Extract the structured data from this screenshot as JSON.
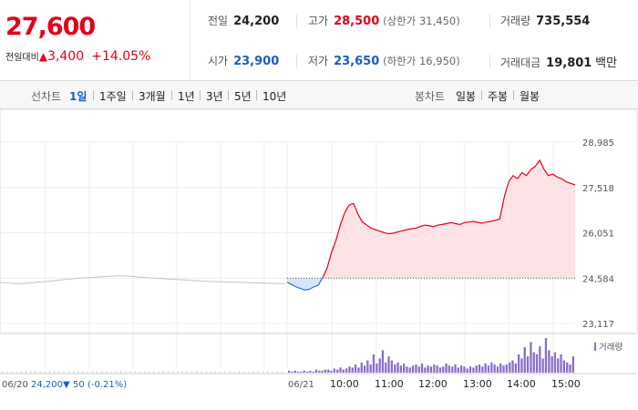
{
  "quote": {
    "price": "27,600",
    "change_label": "전일대비",
    "change_arrow": "▲",
    "change_value": "3,400",
    "change_pct": "+14.05%",
    "colors": {
      "up": "#e3001b",
      "down": "#1a5dc8"
    }
  },
  "stats": {
    "prev_close": {
      "label": "전일",
      "value": "24,200"
    },
    "high": {
      "label": "고가",
      "value": "28,500",
      "sub": "(상한가 31,450)"
    },
    "volume": {
      "label": "거래량",
      "value": "735,554"
    },
    "open": {
      "label": "시가",
      "value": "23,900"
    },
    "low": {
      "label": "저가",
      "value": "23,650",
      "sub": "(하한가 16,950)"
    },
    "amount": {
      "label": "거래대금",
      "value": "19,801",
      "unit": "백만"
    }
  },
  "toolbar": {
    "line_chart_label": "선차트",
    "periods": [
      "1일",
      "1주일",
      "3개월",
      "1년",
      "3년",
      "5년",
      "10년"
    ],
    "active_period": "1일",
    "candle_chart_label": "봉차트",
    "candles": [
      "일봉",
      "주봉",
      "월봉"
    ]
  },
  "footer": {
    "prev_date": "06/20",
    "prev_close": "24,200",
    "prev_arrow": "▼",
    "prev_change": "50",
    "prev_pct": "(-0.21%)"
  },
  "chart_data": {
    "type": "line",
    "y_ticks": [
      "28,985",
      "27,518",
      "26,051",
      "24,584",
      "23,117"
    ],
    "ylim": [
      23117,
      28985
    ],
    "reference_price": 24584,
    "x_labels": [
      "06/21",
      "10:00",
      "11:00",
      "12:00",
      "13:00",
      "14:00",
      "15:00"
    ],
    "volume_legend": "거래량",
    "prev_day_series": [
      24450,
      24420,
      24400,
      24430,
      24460,
      24480,
      24520,
      24550,
      24580,
      24600,
      24620,
      24640,
      24660,
      24650,
      24620,
      24600,
      24580,
      24560,
      24540,
      24520,
      24500,
      24480,
      24470,
      24460,
      24450,
      24440,
      24430,
      24420,
      24410,
      24400
    ],
    "today_series": [
      24450,
      24380,
      24300,
      24250,
      24200,
      24220,
      24300,
      24350,
      24584,
      24900,
      25400,
      25800,
      26300,
      26700,
      26950,
      27000,
      26650,
      26400,
      26300,
      26200,
      26150,
      26100,
      26050,
      26020,
      26040,
      26080,
      26120,
      26150,
      26180,
      26200,
      26250,
      26300,
      26280,
      26250,
      26300,
      26320,
      26350,
      26380,
      26350,
      26320,
      26380,
      26400,
      26420,
      26390,
      26360,
      26400,
      26420,
      26450,
      26500,
      27200,
      27700,
      27900,
      27800,
      28000,
      27900,
      28100,
      28200,
      28400,
      28100,
      27900,
      27950,
      27850,
      27800,
      27700,
      27650,
      27600
    ],
    "volume_bars": [
      2,
      1,
      2,
      1,
      1,
      2,
      1,
      2,
      1,
      3,
      2,
      2,
      3,
      3,
      2,
      4,
      3,
      5,
      3,
      4,
      6,
      5,
      8,
      5,
      10,
      7,
      12,
      8,
      18,
      9,
      14,
      22,
      10,
      16,
      12,
      8,
      10,
      7,
      9,
      6,
      5,
      7,
      8,
      6,
      9,
      5,
      7,
      6,
      8,
      7,
      5,
      6,
      9,
      7,
      6,
      8,
      5,
      7,
      6,
      4,
      6,
      5,
      7,
      8,
      6,
      9,
      7,
      10,
      8,
      6,
      9,
      7,
      8,
      10,
      12,
      9,
      18,
      14,
      25,
      16,
      30,
      20,
      18,
      26,
      14,
      34,
      22,
      16,
      20,
      14,
      18,
      12,
      10,
      8,
      16
    ]
  }
}
